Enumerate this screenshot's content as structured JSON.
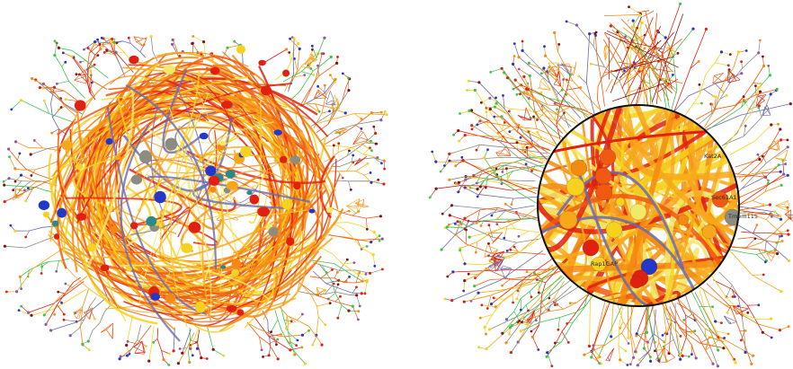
{
  "figure": {
    "panels": [
      {
        "id": "left",
        "description_name": "tangled-network-view",
        "node_labels": []
      },
      {
        "id": "right",
        "description_name": "fisheye-lens-network-view",
        "node_labels": [
          "Rap1GAP",
          "Kat2A",
          "Sec61A1",
          "Tmem115"
        ]
      }
    ]
  },
  "colors": {
    "red": "#e02010",
    "orange_red": "#f05a10",
    "orange": "#f58a12",
    "amber": "#f7a81a",
    "yellow": "#f4d21e",
    "pale_yellow": "#f2e86a",
    "green": "#3cc44a",
    "blue": "#2438c8",
    "slate_blue": "#6a6ab0",
    "purple": "#8a5aa8",
    "gray": "#8c8c80",
    "dark_red": "#8a1010",
    "teal": "#2a8a8a",
    "lens_border": "#111111"
  }
}
